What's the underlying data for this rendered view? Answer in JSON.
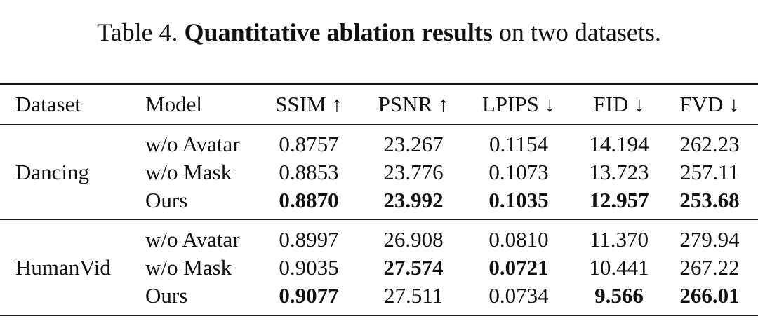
{
  "caption": {
    "prefix": "Table 4.",
    "bold": "Quantitative ablation results",
    "suffix": "on two datasets."
  },
  "headers": [
    "Dataset",
    "Model",
    "SSIM ↑",
    "PSNR ↑",
    "LPIPS ↓",
    "FID ↓",
    "FVD ↓"
  ],
  "groups": [
    {
      "dataset": "Dancing",
      "rows": [
        {
          "model": "w/o Avatar",
          "values": [
            "0.8757",
            "23.267",
            "0.1154",
            "14.194",
            "262.23"
          ],
          "bold": [
            false,
            false,
            false,
            false,
            false
          ]
        },
        {
          "model": "w/o Mask",
          "values": [
            "0.8853",
            "23.776",
            "0.1073",
            "13.723",
            "257.11"
          ],
          "bold": [
            false,
            false,
            false,
            false,
            false
          ]
        },
        {
          "model": "Ours",
          "values": [
            "0.8870",
            "23.992",
            "0.1035",
            "12.957",
            "253.68"
          ],
          "bold": [
            true,
            true,
            true,
            true,
            true
          ]
        }
      ]
    },
    {
      "dataset": "HumanVid",
      "rows": [
        {
          "model": "w/o Avatar",
          "values": [
            "0.8997",
            "26.908",
            "0.0810",
            "11.370",
            "279.94"
          ],
          "bold": [
            false,
            false,
            false,
            false,
            false
          ]
        },
        {
          "model": "w/o Mask",
          "values": [
            "0.9035",
            "27.574",
            "0.0721",
            "10.441",
            "267.22"
          ],
          "bold": [
            false,
            true,
            true,
            false,
            false
          ]
        },
        {
          "model": "Ours",
          "values": [
            "0.9077",
            "27.511",
            "0.0734",
            "9.566",
            "266.01"
          ],
          "bold": [
            true,
            false,
            false,
            true,
            true
          ]
        }
      ]
    }
  ]
}
